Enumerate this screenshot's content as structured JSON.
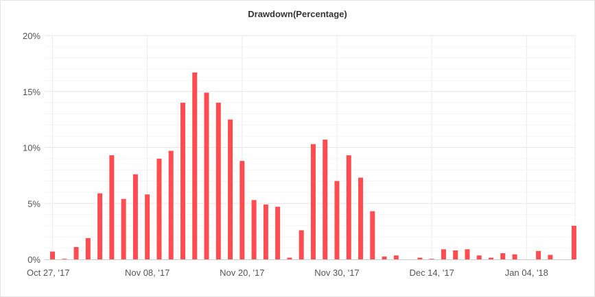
{
  "chart_data": {
    "type": "bar",
    "title": "Drawdown(Percentage)",
    "xlabel": "",
    "ylabel": "",
    "ylim": [
      0,
      20
    ],
    "y_ticks": [
      "0%",
      "5%",
      "10%",
      "15%",
      "20%"
    ],
    "y_tick_values": [
      0,
      5,
      10,
      15,
      20
    ],
    "x_ticks": [
      "Oct 27, '17",
      "Nov 08, '17",
      "Nov 20, '17",
      "Nov 30, '17",
      "Dec 14, '17",
      "Jan 04, '18"
    ],
    "x_tick_index": [
      0,
      8,
      16,
      24,
      32,
      40
    ],
    "grid": true,
    "legend": "none",
    "color": "#ff4c50",
    "values": [
      0.7,
      0.05,
      1.1,
      1.9,
      5.9,
      9.3,
      5.4,
      7.6,
      5.8,
      9.0,
      9.7,
      14.0,
      16.7,
      14.9,
      14.0,
      12.5,
      8.8,
      5.3,
      4.9,
      4.7,
      0.15,
      2.6,
      10.3,
      10.7,
      7.0,
      9.3,
      7.3,
      4.3,
      0.25,
      0.35,
      0,
      0.15,
      0.05,
      0.9,
      0.8,
      0.9,
      0.35,
      0.15,
      0.55,
      0.45,
      0,
      0.75,
      0.4,
      0,
      3.0
    ]
  }
}
